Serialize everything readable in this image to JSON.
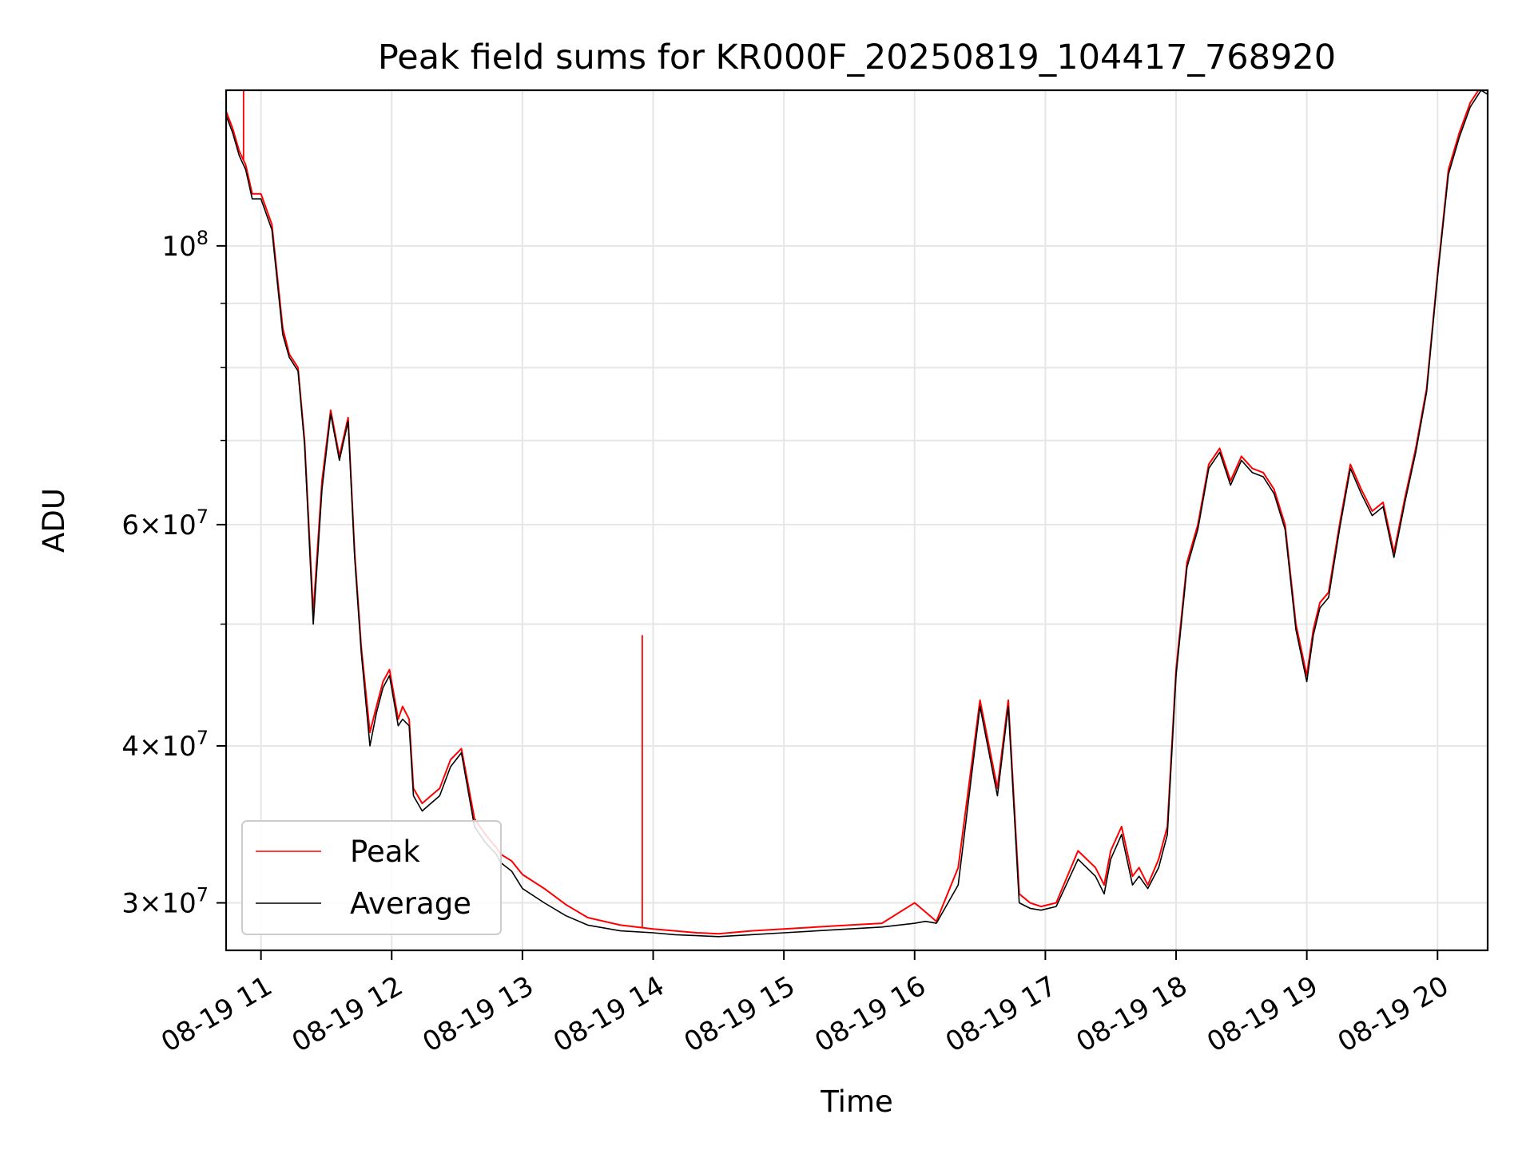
{
  "chart_data": {
    "type": "line",
    "title": "Peak field sums for KR000F_20250819_104417_768920",
    "xlabel": "Time",
    "ylabel": "ADU",
    "yscale": "log",
    "xlim": [
      "08-19 10:44",
      "08-19 20:23"
    ],
    "ylim": [
      27500000,
      133000000
    ],
    "grid": true,
    "legend_position": "lower-left",
    "x_ticks": [
      "08-19 11",
      "08-19 12",
      "08-19 13",
      "08-19 14",
      "08-19 15",
      "08-19 16",
      "08-19 17",
      "08-19 18",
      "08-19 19",
      "08-19 20"
    ],
    "y_ticks": [
      {
        "value": 30000000,
        "mantissa": "3",
        "exp": "7"
      },
      {
        "value": 40000000,
        "mantissa": "4",
        "exp": "7"
      },
      {
        "value": 60000000,
        "mantissa": "6",
        "exp": "7"
      },
      {
        "value": 100000000,
        "mantissa": "",
        "exp": "8"
      }
    ],
    "y_minor_ticks": [
      50000000,
      70000000,
      80000000,
      90000000
    ],
    "x": [
      "10:44",
      "10:47",
      "10:50",
      "10:53",
      "10:56",
      "11:00",
      "11:05",
      "11:10",
      "11:13",
      "11:17",
      "11:20",
      "11:24",
      "11:28",
      "11:32",
      "11:36",
      "11:40",
      "11:43",
      "11:46",
      "11:50",
      "11:53",
      "11:56",
      "11:59",
      "12:03",
      "12:05",
      "12:08",
      "12:10",
      "12:14",
      "12:18",
      "12:22",
      "12:27",
      "12:32",
      "12:38",
      "12:43",
      "12:48",
      "12:50",
      "12:55",
      "13:00",
      "13:10",
      "13:20",
      "13:30",
      "13:45",
      "14:00",
      "14:10",
      "14:20",
      "14:30",
      "14:45",
      "15:00",
      "15:15",
      "15:30",
      "15:45",
      "16:00",
      "16:05",
      "16:10",
      "16:20",
      "16:30",
      "16:38",
      "16:43",
      "16:48",
      "16:53",
      "16:58",
      "17:05",
      "17:15",
      "17:23",
      "17:27",
      "17:30",
      "17:35",
      "17:40",
      "17:43",
      "17:47",
      "17:52",
      "17:56",
      "18:00",
      "18:05",
      "18:10",
      "18:15",
      "18:20",
      "18:25",
      "18:30",
      "18:35",
      "18:40",
      "18:45",
      "18:50",
      "18:55",
      "19:00",
      "19:03",
      "19:06",
      "19:10",
      "19:15",
      "19:20",
      "19:25",
      "19:30",
      "19:35",
      "19:40",
      "19:45",
      "19:50",
      "19:55",
      "20:00",
      "20:05",
      "20:10",
      "20:15",
      "20:20",
      "20:23"
    ],
    "series": [
      {
        "name": "Peak",
        "color": "#ff0000",
        "values": [
          128000000,
          124000000,
          119000000,
          116000000,
          110000000,
          110000000,
          104000000,
          86000000,
          82000000,
          80000000,
          70000000,
          51000000,
          65000000,
          74000000,
          68000000,
          73000000,
          57000000,
          48000000,
          41000000,
          43000000,
          45000000,
          46000000,
          42000000,
          43000000,
          42000000,
          37000000,
          36000000,
          36500000,
          37000000,
          39000000,
          39800000,
          35000000,
          34000000,
          33200000,
          32800000,
          32400000,
          31600000,
          30800000,
          29900000,
          29200000,
          28800000,
          28600000,
          28500000,
          28400000,
          28350000,
          28500000,
          28600000,
          28700000,
          28800000,
          28900000,
          30000000,
          29500000,
          29000000,
          32000000,
          43500000,
          37000000,
          43500000,
          30500000,
          30000000,
          29800000,
          30000000,
          33000000,
          32000000,
          31000000,
          33000000,
          34500000,
          31500000,
          32000000,
          31000000,
          32500000,
          34500000,
          46000000,
          56000000,
          60000000,
          67000000,
          69000000,
          65000000,
          68000000,
          66500000,
          66000000,
          64000000,
          60000000,
          50000000,
          45500000,
          49500000,
          52000000,
          53000000,
          60000000,
          67000000,
          64000000,
          61500000,
          62500000,
          57000000,
          63000000,
          69000000,
          77000000,
          95000000,
          115000000,
          123000000,
          130000000,
          134000000,
          133000000
        ],
        "spikes": [
          {
            "x": "10:52",
            "value": 140000000
          },
          {
            "x": "13:55",
            "value": 49000000
          }
        ]
      },
      {
        "name": "Average",
        "color": "#000000",
        "values": [
          127000000,
          123000000,
          118000000,
          115000000,
          109000000,
          109000000,
          103000000,
          85000000,
          81500000,
          79500000,
          69500000,
          50000000,
          64000000,
          73500000,
          67500000,
          72500000,
          56500000,
          47500000,
          40000000,
          42500000,
          44500000,
          45500000,
          41500000,
          42000000,
          41500000,
          36500000,
          35500000,
          36000000,
          36500000,
          38500000,
          39500000,
          34500000,
          33500000,
          32800000,
          32300000,
          31800000,
          30800000,
          30000000,
          29300000,
          28800000,
          28500000,
          28400000,
          28300000,
          28250000,
          28200000,
          28300000,
          28400000,
          28500000,
          28600000,
          28700000,
          28900000,
          29000000,
          28900000,
          31000000,
          43000000,
          36500000,
          43000000,
          30000000,
          29700000,
          29600000,
          29800000,
          32500000,
          31500000,
          30500000,
          32500000,
          34000000,
          31000000,
          31500000,
          30800000,
          32000000,
          34000000,
          45500000,
          55500000,
          59500000,
          66500000,
          68500000,
          64500000,
          67500000,
          66000000,
          65500000,
          63500000,
          59500000,
          49500000,
          45000000,
          49000000,
          51500000,
          52500000,
          59500000,
          66500000,
          63500000,
          61000000,
          62000000,
          56500000,
          62500000,
          68500000,
          76500000,
          94500000,
          114000000,
          122000000,
          129000000,
          133000000,
          132000000
        ]
      }
    ]
  }
}
